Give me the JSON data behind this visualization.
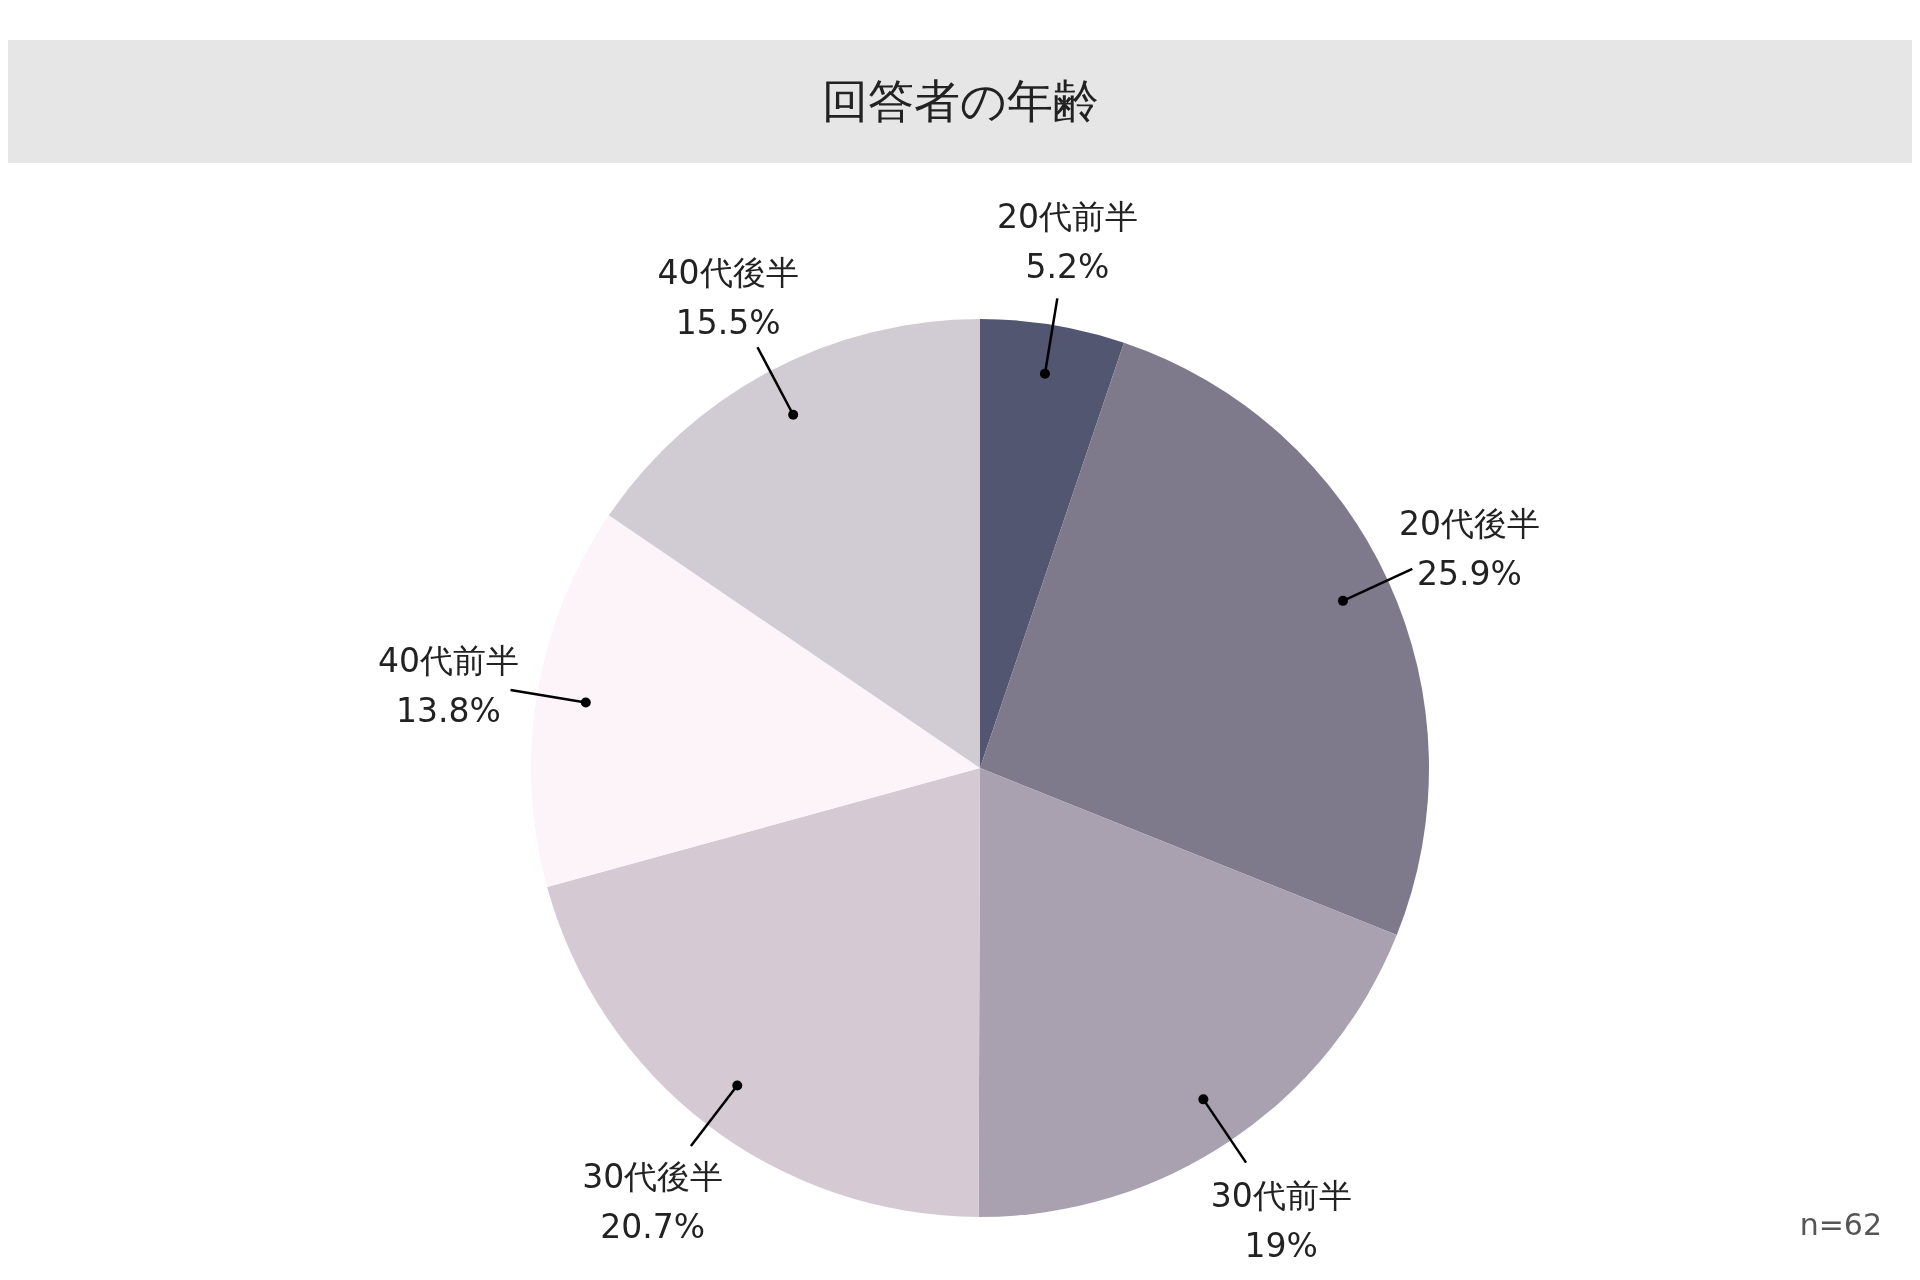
{
  "chart_data": {
    "type": "pie",
    "title": "回答者の年齢",
    "categories": [
      "20代前半",
      "20代後半",
      "30代前半",
      "30代後半",
      "40代前半",
      "40代後半"
    ],
    "values": [
      5.2,
      25.9,
      19,
      20.7,
      13.8,
      15.5
    ],
    "colors": [
      "#525670",
      "#7e7a8c",
      "#a9a1b0",
      "#d5cad4",
      "#fdf4f9",
      "#d1ccd3"
    ],
    "value_labels": [
      "5.2%",
      "25.9%",
      "19%",
      "20.7%",
      "13.8%",
      "15.5%"
    ],
    "annotations": [
      "n=62"
    ]
  }
}
